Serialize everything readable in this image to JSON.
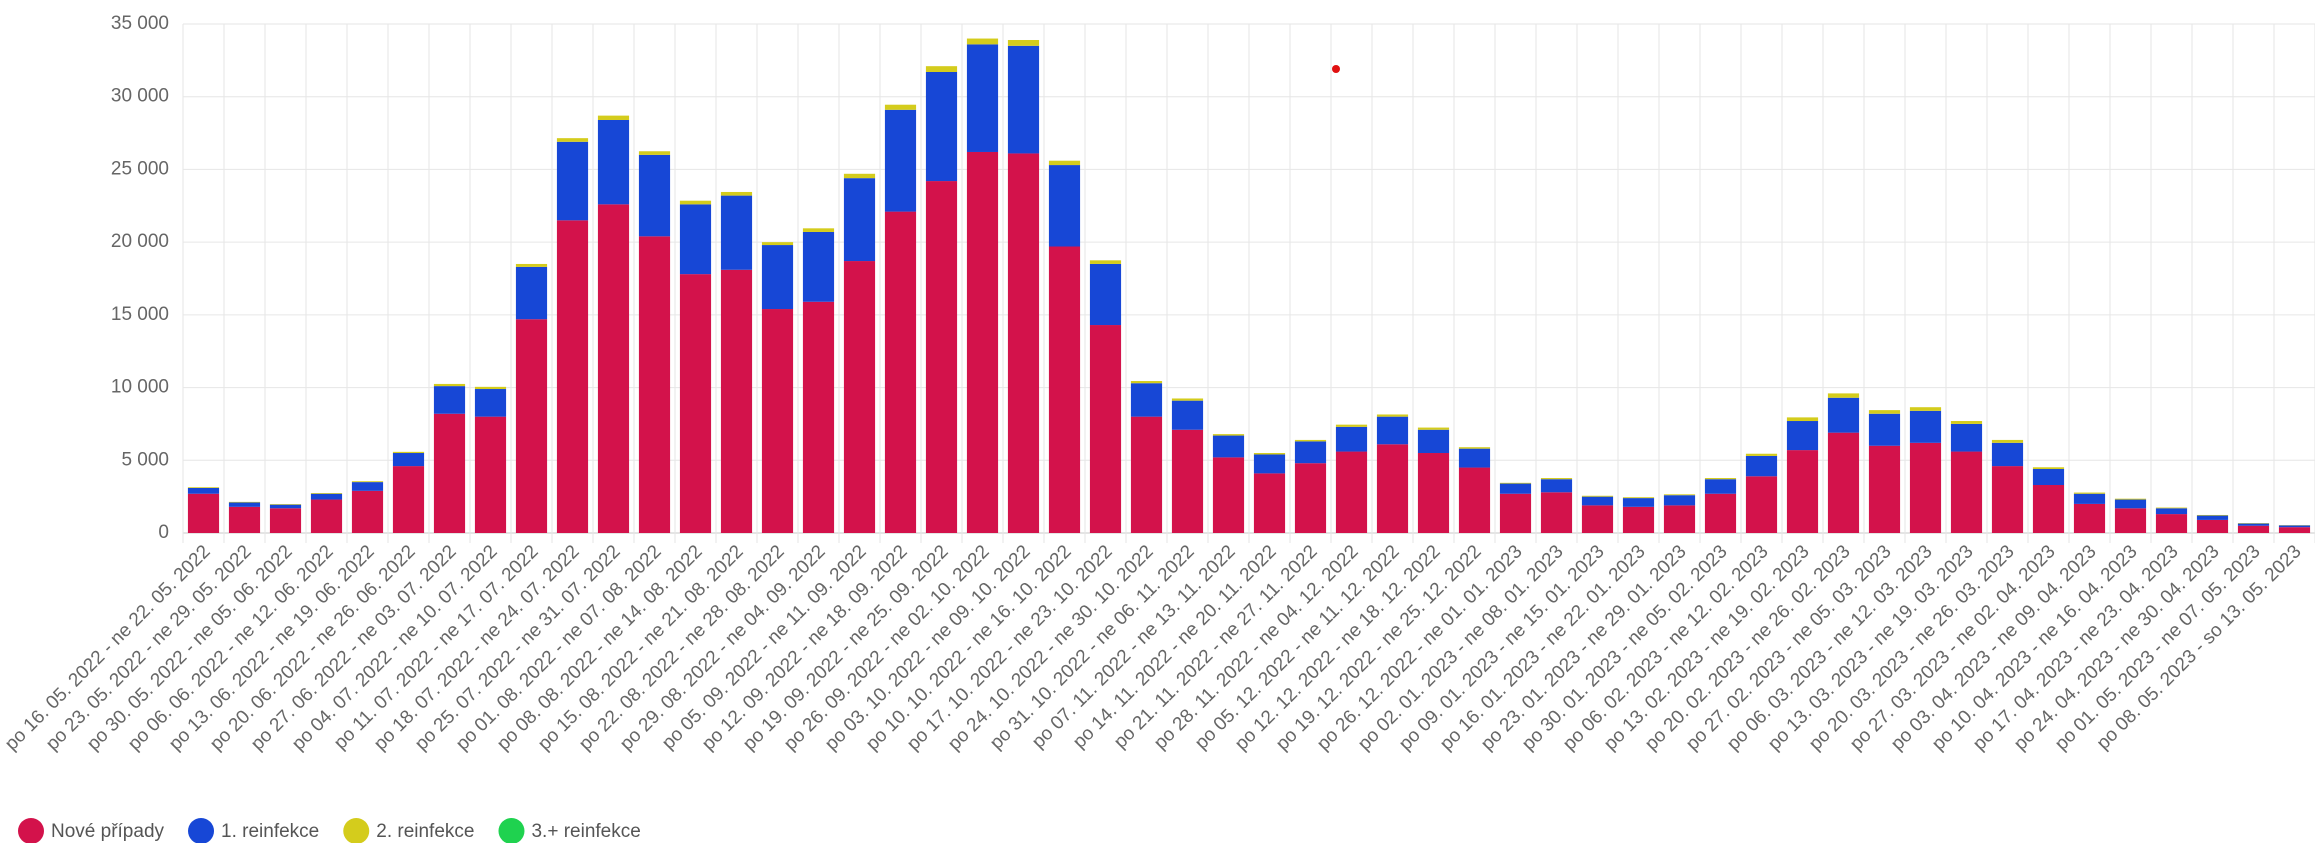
{
  "chart_data": {
    "type": "stacked_bar",
    "categories": [
      "po 16. 05. 2022 - ne 22. 05. 2022",
      "po 23. 05. 2022 - ne 29. 05. 2022",
      "po 30. 05. 2022 - ne 05. 06. 2022",
      "po 06. 06. 2022 - ne 12. 06. 2022",
      "po 13. 06. 2022 - ne 19. 06. 2022",
      "po 20. 06. 2022 - ne 26. 06. 2022",
      "po 27. 06. 2022 - ne 03. 07. 2022",
      "po 04. 07. 2022 - ne 10. 07. 2022",
      "po 11. 07. 2022 - ne 17. 07. 2022",
      "po 18. 07. 2022 - ne 24. 07. 2022",
      "po 25. 07. 2022 - ne 31. 07. 2022",
      "po 01. 08. 2022 - ne 07. 08. 2022",
      "po 08. 08. 2022 - ne 14. 08. 2022",
      "po 15. 08. 2022 - ne 21. 08. 2022",
      "po 22. 08. 2022 - ne 28. 08. 2022",
      "po 29. 08. 2022 - ne 04. 09. 2022",
      "po 05. 09. 2022 - ne 11. 09. 2022",
      "po 12. 09. 2022 - ne 18. 09. 2022",
      "po 19. 09. 2022 - ne 25. 09. 2022",
      "po 26. 09. 2022 - ne 02. 10. 2022",
      "po 03. 10. 2022 - ne 09. 10. 2022",
      "po 10. 10. 2022 - ne 16. 10. 2022",
      "po 17. 10. 2022 - ne 23. 10. 2022",
      "po 24. 10. 2022 - ne 30. 10. 2022",
      "po 31. 10. 2022 - ne 06. 11. 2022",
      "po 07. 11. 2022 - ne 13. 11. 2022",
      "po 14. 11. 2022 - ne 20. 11. 2022",
      "po 21. 11. 2022 - ne 27. 11. 2022",
      "po 28. 11. 2022 - ne 04. 12. 2022",
      "po 05. 12. 2022 - ne 11. 12. 2022",
      "po 12. 12. 2022 - ne 18. 12. 2022",
      "po 19. 12. 2022 - ne 25. 12. 2022",
      "po 26. 12. 2022 - ne 01. 01. 2023",
      "po 02. 01. 2023 - ne 08. 01. 2023",
      "po 09. 01. 2023 - ne 15. 01. 2023",
      "po 16. 01. 2023 - ne 22. 01. 2023",
      "po 23. 01. 2023 - ne 29. 01. 2023",
      "po 30. 01. 2023 - ne 05. 02. 2023",
      "po 06. 02. 2023 - ne 12. 02. 2023",
      "po 13. 02. 2023 - ne 19. 02. 2023",
      "po 20. 02. 2023 - ne 26. 02. 2023",
      "po 27. 02. 2023 - ne 05. 03. 2023",
      "po 06. 03. 2023 - ne 12. 03. 2023",
      "po 13. 03. 2023 - ne 19. 03. 2023",
      "po 20. 03. 2023 - ne 26. 03. 2023",
      "po 27. 03. 2023 - ne 02. 04. 2023",
      "po 03. 04. 2023 - ne 09. 04. 2023",
      "po 10. 04. 2023 - ne 16. 04. 2023",
      "po 17. 04. 2023 - ne 23. 04. 2023",
      "po 24. 04. 2023 - ne 30. 04. 2023",
      "po 01. 05. 2023 - ne 07. 05. 2023",
      "po 08. 05. 2023 - so 13. 05. 2023"
    ],
    "series": [
      {
        "name": "Nové případy",
        "color": "#d3124b",
        "values": [
          2700,
          1800,
          1700,
          2300,
          2900,
          4600,
          8200,
          8000,
          14700,
          21500,
          22600,
          20400,
          17800,
          18100,
          15400,
          15900,
          18700,
          22100,
          24200,
          26200,
          26100,
          19700,
          14300,
          8000,
          7100,
          5200,
          4100,
          4800,
          5600,
          6100,
          5500,
          4500,
          2700,
          2800,
          1900,
          1800,
          1900,
          2700,
          3900,
          5700,
          6900,
          6000,
          6200,
          5600,
          4600,
          3300,
          2000,
          1700,
          1300,
          900,
          500,
          400
        ]
      },
      {
        "name": "1. reinfekce",
        "color": "#1747d6",
        "values": [
          400,
          300,
          250,
          400,
          600,
          900,
          1900,
          1900,
          3600,
          5400,
          5800,
          5600,
          4800,
          5100,
          4400,
          4800,
          5700,
          7000,
          7500,
          7400,
          7400,
          5600,
          4200,
          2300,
          2000,
          1500,
          1300,
          1500,
          1700,
          1900,
          1600,
          1300,
          700,
          900,
          600,
          600,
          700,
          1000,
          1400,
          2000,
          2400,
          2200,
          2200,
          1900,
          1600,
          1100,
          700,
          600,
          400,
          300,
          150,
          120
        ]
      },
      {
        "name": "2. reinfekce",
        "color": "#d4cc1c",
        "values": [
          50,
          40,
          40,
          50,
          60,
          80,
          150,
          150,
          200,
          250,
          300,
          250,
          250,
          250,
          200,
          250,
          300,
          350,
          400,
          400,
          400,
          300,
          250,
          150,
          150,
          100,
          100,
          100,
          150,
          150,
          150,
          100,
          50,
          80,
          60,
          60,
          60,
          80,
          150,
          250,
          300,
          250,
          250,
          200,
          200,
          120,
          80,
          60,
          50,
          40,
          30,
          20
        ]
      },
      {
        "name": "3.+ reinfekce",
        "color": "#1fd24f",
        "values": [
          0,
          0,
          0,
          0,
          0,
          0,
          0,
          0,
          0,
          0,
          0,
          0,
          0,
          0,
          0,
          0,
          0,
          0,
          0,
          0,
          0,
          0,
          0,
          0,
          0,
          0,
          0,
          0,
          0,
          0,
          0,
          0,
          0,
          0,
          0,
          0,
          0,
          0,
          0,
          0,
          0,
          0,
          0,
          0,
          0,
          0,
          0,
          0,
          0,
          0,
          0,
          0
        ]
      }
    ],
    "ylim": [
      0,
      35000
    ],
    "yticks": [
      0,
      {
        "value": 5000,
        "label": "5 000"
      },
      {
        "value": 10000,
        "label": "10 000"
      },
      {
        "value": 15000,
        "label": "15 000"
      },
      {
        "value": 20000,
        "label": "20 000"
      },
      {
        "value": 25000,
        "label": "25 000"
      },
      {
        "value": 30000,
        "label": "30 000"
      },
      {
        "value": 35000,
        "label": "35 000"
      }
    ],
    "grid": true
  }
}
